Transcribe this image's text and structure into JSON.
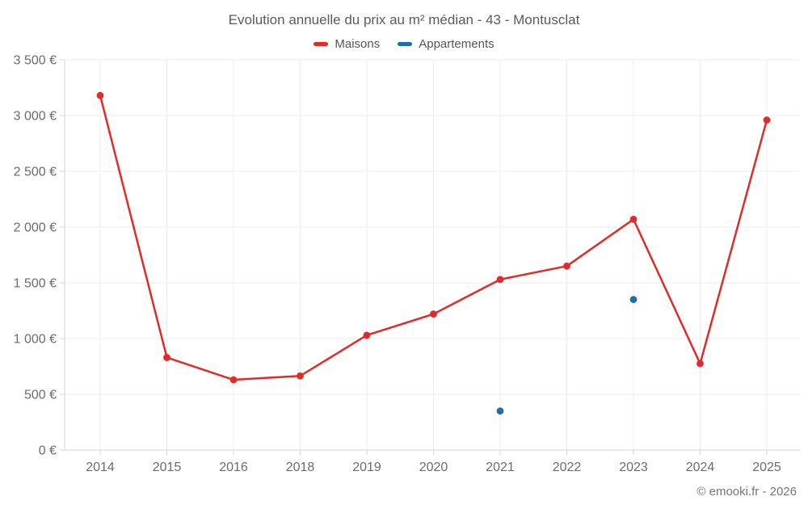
{
  "chart_data": {
    "type": "line",
    "title": "Evolution annuelle du prix au m² médian - 43 - Montusclat",
    "categories": [
      "2014",
      "2015",
      "2016",
      "2018",
      "2019",
      "2020",
      "2021",
      "2022",
      "2023",
      "2024",
      "2025"
    ],
    "series": [
      {
        "name": "Maisons",
        "color": "#e02b2b",
        "draw_line": true,
        "values": [
          3180,
          830,
          630,
          665,
          1030,
          1220,
          1530,
          1650,
          2070,
          775,
          2960
        ]
      },
      {
        "name": "Appartements",
        "color": "#1c6fa8",
        "draw_line": false,
        "values": [
          null,
          null,
          null,
          null,
          null,
          null,
          350,
          null,
          1350,
          null,
          null
        ]
      }
    ],
    "ylim": [
      0,
      3500
    ],
    "ytick_step": 500,
    "ytick_labels": [
      "0 €",
      "500 €",
      "1 000 €",
      "1 500 €",
      "2 000 €",
      "2 500 €",
      "3 000 €",
      "3 500 €"
    ],
    "grid": true,
    "legend_position": "top-center"
  },
  "footer": {
    "copyright": "© emooki.fr - 2026"
  },
  "colors": {
    "grid": "#ececec",
    "axis": "#d6d6d6",
    "tick": "#d6d6d6",
    "axis_text": "#6b6b6b",
    "title_text": "#5a5a5a",
    "legend_text": "#555555",
    "footer_text": "#757575",
    "background": "#ffffff"
  }
}
